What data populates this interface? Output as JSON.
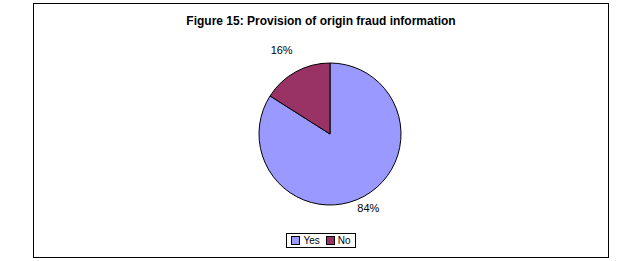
{
  "chart_data": {
    "type": "pie",
    "title": "Figure 15: Provision of origin fraud information",
    "categories": [
      "Yes",
      "No"
    ],
    "values": [
      84,
      16
    ],
    "value_labels": [
      "84%",
      "16%"
    ],
    "colors": [
      "#9999ff",
      "#993366"
    ],
    "data_labels": true,
    "legend": "bottom"
  }
}
